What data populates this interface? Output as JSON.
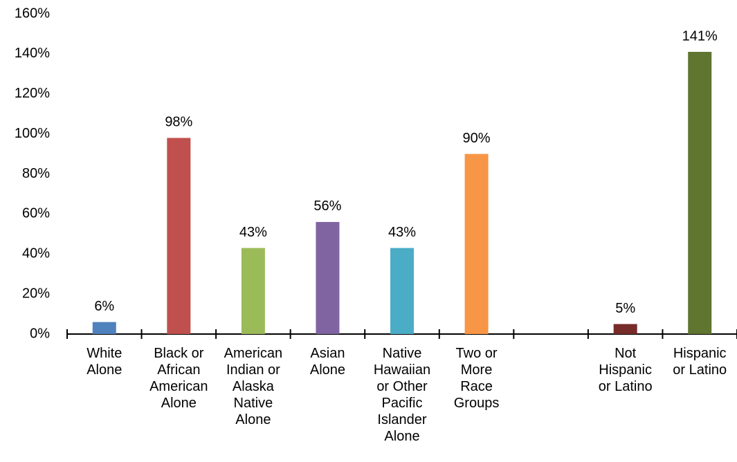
{
  "chart_data": {
    "type": "bar",
    "categories": [
      "White Alone",
      "Black or African American Alone",
      "American Indian or Alaska Native Alone",
      "Asian Alone",
      "Native Hawaiian or Other Pacific Islander Alone",
      "Two or More Race Groups",
      null,
      "Not Hispanic or Latino",
      "Hispanic or Latino"
    ],
    "values": [
      6,
      98,
      43,
      56,
      43,
      90,
      null,
      5,
      141
    ],
    "value_labels": [
      "6%",
      "98%",
      "43%",
      "56%",
      "43%",
      "90%",
      null,
      "5%",
      "141%"
    ],
    "colors": [
      "#4f81bd",
      "#c0504d",
      "#9bbb59",
      "#8064a2",
      "#4bacc6",
      "#f79646",
      null,
      "#772c2a",
      "#5f7530"
    ],
    "ylim": [
      0,
      160
    ],
    "yticks": [
      {
        "value": 0,
        "label": "0%"
      },
      {
        "value": 20,
        "label": "20%"
      },
      {
        "value": 40,
        "label": "40%"
      },
      {
        "value": 60,
        "label": "60%"
      },
      {
        "value": 80,
        "label": "80%"
      },
      {
        "value": 100,
        "label": "100%"
      },
      {
        "value": 120,
        "label": "120%"
      },
      {
        "value": 140,
        "label": "140%"
      },
      {
        "value": 160,
        "label": "160%"
      }
    ],
    "grid": false
  }
}
